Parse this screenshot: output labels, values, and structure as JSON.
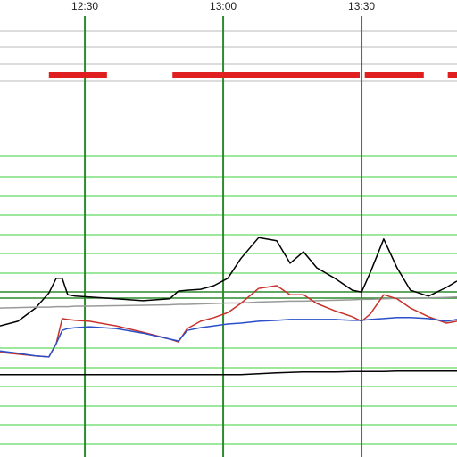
{
  "chart_data": {
    "type": "line",
    "x": [
      731.6,
      735.5,
      739.3,
      742.2,
      743.8,
      745.1,
      746.3,
      748.0,
      751.0,
      756.8,
      762.6,
      768.4,
      770.3,
      772.2,
      775.1,
      778.0,
      781.0,
      783.8,
      787.7,
      791.6,
      794.5,
      797.4,
      800.3,
      804.2,
      808.0,
      810.0,
      811.9,
      814.8,
      817.7,
      820.6,
      824.5,
      828.4,
      830.7
    ],
    "xlim": [
      731.6,
      830.7
    ],
    "xticks": [
      {
        "value": 750,
        "label": "12:30"
      },
      {
        "value": 780,
        "label": "13:00"
      },
      {
        "value": 810,
        "label": "13:30"
      }
    ],
    "ylim": [
      0,
      100
    ],
    "series": [
      {
        "color": "#000000",
        "values": [
          28.7,
          29.7,
          32.6,
          35.9,
          39.1,
          39.1,
          35.5,
          35.2,
          35.0,
          34.6,
          34.2,
          34.6,
          36.3,
          36.5,
          36.7,
          37.5,
          39.1,
          43.4,
          48.0,
          47.3,
          42.4,
          44.9,
          41.4,
          39.1,
          36.5,
          36.1,
          40.4,
          47.7,
          41.4,
          36.5,
          35.2,
          37.1,
          38.5
        ]
      },
      {
        "color": "#999999",
        "values": [
          32.6,
          32.7,
          32.8,
          32.8,
          32.9,
          32.9,
          32.9,
          33.0,
          33.0,
          33.1,
          33.2,
          33.3,
          33.4,
          33.4,
          33.5,
          33.6,
          33.7,
          33.7,
          33.9,
          34.0,
          34.1,
          34.1,
          34.2,
          34.3,
          34.4,
          34.5,
          34.5,
          34.6,
          34.7,
          34.7,
          34.8,
          34.9,
          35.0
        ]
      },
      {
        "color": "#c8322a",
        "values": [
          22.9,
          22.5,
          22.1,
          21.9,
          24.8,
          30.3,
          30.1,
          29.9,
          29.7,
          28.7,
          27.3,
          25.8,
          25.2,
          28.1,
          29.7,
          30.5,
          31.6,
          33.6,
          36.9,
          37.5,
          35.5,
          35.5,
          33.6,
          32.0,
          30.7,
          29.7,
          31.3,
          35.5,
          34.6,
          32.6,
          30.7,
          29.3,
          29.7
        ]
      },
      {
        "color": "#2a4fc8",
        "values": [
          23.2,
          22.7,
          22.1,
          21.9,
          24.8,
          27.7,
          28.1,
          28.3,
          28.5,
          28.1,
          27.1,
          25.8,
          25.4,
          27.7,
          28.3,
          28.7,
          29.1,
          29.3,
          29.7,
          29.9,
          30.1,
          30.1,
          30.1,
          30.1,
          29.9,
          29.9,
          30.1,
          30.3,
          30.5,
          30.5,
          30.3,
          29.7,
          30.1
        ]
      },
      {
        "color": "#000000",
        "values": [
          18.0,
          18.0,
          18.0,
          18.0,
          18.0,
          18.0,
          18.0,
          18.0,
          18.0,
          18.0,
          18.0,
          18.0,
          18.0,
          18.0,
          18.0,
          18.0,
          18.0,
          18.0,
          18.2,
          18.4,
          18.5,
          18.6,
          18.6,
          18.6,
          18.7,
          18.7,
          18.7,
          18.7,
          18.8,
          18.8,
          18.8,
          18.8,
          18.8
        ]
      }
    ],
    "segments": [
      [
        742.2,
        754.8
      ],
      [
        769.0,
        809.6
      ],
      [
        810.7,
        823.5
      ],
      [
        828.7,
        830.7
      ]
    ],
    "segment_color": "#e02020",
    "grid_color": "#2e8b2e"
  }
}
